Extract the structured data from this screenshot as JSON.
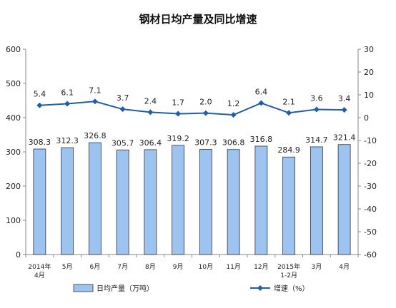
{
  "chart_data": {
    "type": "bar+line",
    "title": "钢材日均产量及同比增速",
    "categories": [
      [
        "2014年",
        "4月"
      ],
      [
        "5月"
      ],
      [
        "6月"
      ],
      [
        "7月"
      ],
      [
        "8月"
      ],
      [
        "9月"
      ],
      [
        "10月"
      ],
      [
        "11月"
      ],
      [
        "12月"
      ],
      [
        "2015年",
        "1-2月"
      ],
      [
        "3月"
      ],
      [
        "4月"
      ]
    ],
    "series": [
      {
        "name": "日均产量（万吨）",
        "type": "bar",
        "axis": "left",
        "color": "#9dc3f0",
        "values": [
          308.3,
          312.3,
          326.8,
          305.7,
          306.4,
          319.2,
          307.3,
          306.8,
          316.8,
          284.9,
          314.7,
          321.4
        ]
      },
      {
        "name": "增速（%）",
        "type": "line",
        "axis": "right",
        "color": "#1f5fa8",
        "values": [
          5.4,
          6.1,
          7.1,
          3.7,
          2.4,
          1.7,
          2.0,
          1.2,
          6.4,
          2.1,
          3.6,
          3.4
        ]
      }
    ],
    "y_left": {
      "min": 0,
      "max": 600,
      "ticks": [
        0,
        100,
        200,
        300,
        400,
        500,
        600
      ]
    },
    "y_right": {
      "min": -60,
      "max": 30,
      "ticks": [
        -60,
        -50,
        -40,
        -30,
        -20,
        -10,
        0,
        10,
        20,
        30
      ]
    },
    "grid": false,
    "legend_position": "bottom"
  }
}
